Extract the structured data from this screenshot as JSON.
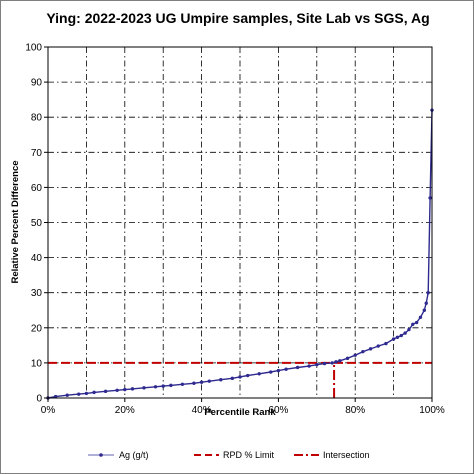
{
  "chart_data": {
    "type": "line",
    "title": "Ying: 2022-2023 UG Umpire samples, Site Lab vs SGS, Ag",
    "xlabel": "Percentile Rank",
    "ylabel": "Relative Percent Difference",
    "xlim": [
      0,
      100
    ],
    "ylim": [
      0,
      100
    ],
    "x_ticks": [
      0,
      20,
      40,
      60,
      80,
      100
    ],
    "x_tick_labels": [
      "0%",
      "20%",
      "40%",
      "60%",
      "80%",
      "100%"
    ],
    "y_ticks": [
      0,
      10,
      20,
      30,
      40,
      50,
      60,
      70,
      80,
      90,
      100
    ],
    "y_tick_labels": [
      "0",
      "10",
      "20",
      "30",
      "40",
      "50",
      "60",
      "70",
      "80",
      "90",
      "100"
    ],
    "grid": true,
    "legend_position": "bottom",
    "series": [
      {
        "name": "Ag (g/t)",
        "color": "#2e2a8f",
        "x": [
          0,
          2,
          5,
          8,
          10,
          12,
          15,
          18,
          20,
          22,
          25,
          28,
          30,
          32,
          35,
          38,
          40,
          42,
          45,
          48,
          50,
          52,
          55,
          58,
          60,
          62,
          65,
          68,
          70,
          72,
          74,
          75,
          76,
          78,
          80,
          82,
          84,
          86,
          88,
          90,
          91,
          92,
          93,
          94,
          95,
          96,
          97,
          98,
          98.5,
          99,
          99.5,
          100
        ],
        "y": [
          0,
          0.4,
          0.8,
          1.1,
          1.3,
          1.6,
          1.9,
          2.2,
          2.4,
          2.6,
          2.9,
          3.2,
          3.4,
          3.6,
          3.9,
          4.2,
          4.5,
          4.8,
          5.2,
          5.6,
          6.0,
          6.4,
          6.9,
          7.4,
          7.8,
          8.2,
          8.7,
          9.1,
          9.5,
          9.8,
          10.0,
          10.3,
          10.6,
          11.3,
          12.2,
          13.2,
          14.0,
          14.8,
          15.5,
          16.8,
          17.3,
          17.8,
          18.5,
          19.5,
          21.0,
          21.5,
          23.0,
          25.0,
          27.0,
          30.0,
          57.0,
          82.0
        ]
      },
      {
        "name": "RPD % Limit",
        "color": "#c00000",
        "x": [
          0,
          100
        ],
        "y": [
          10,
          10
        ]
      },
      {
        "name": "Intersection",
        "color": "#c00000",
        "x": [
          74.5,
          74.5
        ],
        "y": [
          0,
          10
        ]
      }
    ]
  }
}
